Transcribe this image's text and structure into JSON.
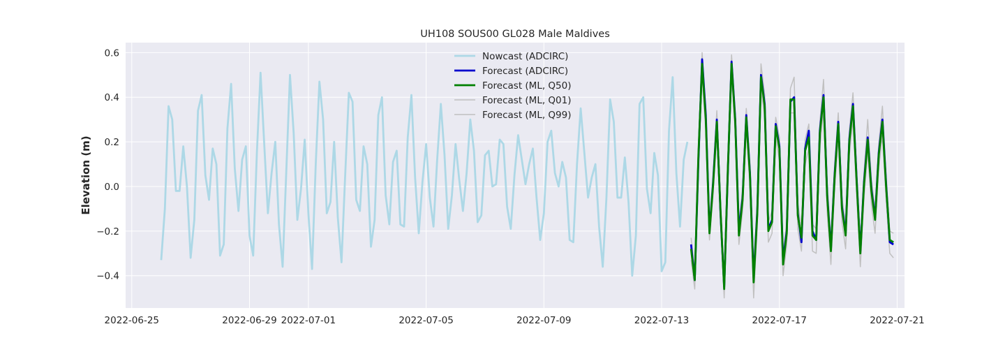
{
  "chart_data": {
    "type": "line",
    "title": "UH108 SOUS00 GL028 Male Maldives",
    "xlabel": "",
    "ylabel": "Elevation (m)",
    "xlim": [
      "2022-06-24T19:00",
      "2022-07-21T06:00"
    ],
    "ylim": [
      -0.545,
      0.645
    ],
    "grid": true,
    "legend_position": "top-center",
    "x_ticks": [
      "2022-06-25",
      "2022-06-29",
      "2022-07-01",
      "2022-07-05",
      "2022-07-09",
      "2022-07-13",
      "2022-07-17",
      "2022-07-21"
    ],
    "y_ticks": [
      "0.6",
      "0.4",
      "0.2",
      "0.0",
      "−0.2",
      "−0.4"
    ],
    "y_tick_values": [
      0.6,
      0.4,
      0.2,
      0.0,
      -0.2,
      -0.4
    ],
    "colors": {
      "plot_background": "#eaeaf2",
      "grid": "#ffffff",
      "nowcast": "#add8e6",
      "forecast_adcirc": "#0000cd",
      "forecast_ml_q50": "#008000",
      "forecast_ml_bounds": "#c0c0c0"
    },
    "series": [
      {
        "name": "Nowcast (ADCIRC)",
        "color": "#add8e6",
        "x": [
          "2022-06-26T00:00",
          "2022-06-26T03:00",
          "2022-06-26T06:00",
          "2022-06-26T09:00",
          "2022-06-26T12:00",
          "2022-06-26T15:00",
          "2022-06-26T18:00",
          "2022-06-26T21:00",
          "2022-06-27T00:00",
          "2022-06-27T03:00",
          "2022-06-27T06:00",
          "2022-06-27T09:00",
          "2022-06-27T12:00",
          "2022-06-27T15:00",
          "2022-06-27T18:00",
          "2022-06-27T21:00",
          "2022-06-28T00:00",
          "2022-06-28T03:00",
          "2022-06-28T06:00",
          "2022-06-28T09:00",
          "2022-06-28T12:00",
          "2022-06-28T15:00",
          "2022-06-28T18:00",
          "2022-06-28T21:00",
          "2022-06-29T00:00",
          "2022-06-29T03:00",
          "2022-06-29T06:00",
          "2022-06-29T09:00",
          "2022-06-29T12:00",
          "2022-06-29T15:00",
          "2022-06-29T18:00",
          "2022-06-29T21:00",
          "2022-06-30T00:00",
          "2022-06-30T03:00",
          "2022-06-30T06:00",
          "2022-06-30T09:00",
          "2022-06-30T12:00",
          "2022-06-30T15:00",
          "2022-06-30T18:00",
          "2022-06-30T21:00",
          "2022-07-01T00:00",
          "2022-07-01T03:00",
          "2022-07-01T06:00",
          "2022-07-01T09:00",
          "2022-07-01T12:00",
          "2022-07-01T15:00",
          "2022-07-01T18:00",
          "2022-07-01T21:00",
          "2022-07-02T00:00",
          "2022-07-02T03:00",
          "2022-07-02T06:00",
          "2022-07-02T09:00",
          "2022-07-02T12:00",
          "2022-07-02T15:00",
          "2022-07-02T18:00",
          "2022-07-02T21:00",
          "2022-07-03T00:00",
          "2022-07-03T03:00",
          "2022-07-03T06:00",
          "2022-07-03T09:00",
          "2022-07-03T12:00",
          "2022-07-03T15:00",
          "2022-07-03T18:00",
          "2022-07-03T21:00",
          "2022-07-04T00:00",
          "2022-07-04T03:00",
          "2022-07-04T06:00",
          "2022-07-04T09:00",
          "2022-07-04T12:00",
          "2022-07-04T15:00",
          "2022-07-04T18:00",
          "2022-07-04T21:00",
          "2022-07-05T00:00",
          "2022-07-05T03:00",
          "2022-07-05T06:00",
          "2022-07-05T09:00",
          "2022-07-05T12:00",
          "2022-07-05T15:00",
          "2022-07-05T18:00",
          "2022-07-05T21:00",
          "2022-07-06T00:00",
          "2022-07-06T03:00",
          "2022-07-06T06:00",
          "2022-07-06T09:00",
          "2022-07-06T12:00",
          "2022-07-06T15:00",
          "2022-07-06T18:00",
          "2022-07-06T21:00",
          "2022-07-07T00:00",
          "2022-07-07T03:00",
          "2022-07-07T06:00",
          "2022-07-07T09:00",
          "2022-07-07T12:00",
          "2022-07-07T15:00",
          "2022-07-07T18:00",
          "2022-07-07T21:00",
          "2022-07-08T00:00",
          "2022-07-08T03:00",
          "2022-07-08T06:00",
          "2022-07-08T09:00",
          "2022-07-08T12:00",
          "2022-07-08T15:00",
          "2022-07-08T18:00",
          "2022-07-08T21:00",
          "2022-07-09T00:00",
          "2022-07-09T03:00",
          "2022-07-09T06:00",
          "2022-07-09T09:00",
          "2022-07-09T12:00",
          "2022-07-09T15:00",
          "2022-07-09T18:00",
          "2022-07-09T21:00",
          "2022-07-10T00:00",
          "2022-07-10T03:00",
          "2022-07-10T06:00",
          "2022-07-10T09:00",
          "2022-07-10T12:00",
          "2022-07-10T15:00",
          "2022-07-10T18:00",
          "2022-07-10T21:00",
          "2022-07-11T00:00",
          "2022-07-11T03:00",
          "2022-07-11T06:00",
          "2022-07-11T09:00",
          "2022-07-11T12:00",
          "2022-07-11T15:00",
          "2022-07-11T18:00",
          "2022-07-11T21:00",
          "2022-07-12T00:00",
          "2022-07-12T03:00",
          "2022-07-12T06:00",
          "2022-07-12T09:00",
          "2022-07-12T12:00",
          "2022-07-12T15:00",
          "2022-07-12T18:00",
          "2022-07-12T21:00",
          "2022-07-13T00:00",
          "2022-07-13T03:00",
          "2022-07-13T06:00",
          "2022-07-13T09:00",
          "2022-07-13T12:00",
          "2022-07-13T15:00",
          "2022-07-13T18:00",
          "2022-07-13T21:00"
        ],
        "values": [
          -0.33,
          -0.1,
          0.36,
          0.3,
          -0.02,
          -0.02,
          0.18,
          0.0,
          -0.32,
          -0.15,
          0.34,
          0.41,
          0.05,
          -0.06,
          0.17,
          0.1,
          -0.31,
          -0.26,
          0.26,
          0.46,
          0.08,
          -0.11,
          0.12,
          0.18,
          -0.22,
          -0.31,
          0.15,
          0.51,
          0.19,
          -0.12,
          0.06,
          0.2,
          -0.17,
          -0.36,
          0.07,
          0.5,
          0.24,
          -0.15,
          -0.01,
          0.21,
          -0.12,
          -0.37,
          0.1,
          0.47,
          0.3,
          -0.12,
          -0.07,
          0.2,
          -0.14,
          -0.34,
          0.05,
          0.42,
          0.38,
          -0.06,
          -0.11,
          0.18,
          0.1,
          -0.27,
          -0.15,
          0.32,
          0.4,
          -0.04,
          -0.17,
          0.11,
          0.16,
          -0.17,
          -0.18,
          0.22,
          0.41,
          0.04,
          -0.21,
          0.02,
          0.19,
          -0.05,
          -0.18,
          0.12,
          0.37,
          0.14,
          -0.19,
          -0.04,
          0.19,
          0.03,
          -0.11,
          0.06,
          0.3,
          0.16,
          -0.16,
          -0.13,
          0.14,
          0.16,
          0.0,
          0.01,
          0.21,
          0.19,
          -0.09,
          -0.19,
          0.05,
          0.23,
          0.12,
          0.01,
          0.1,
          0.17,
          -0.05,
          -0.24,
          -0.12,
          0.2,
          0.25,
          0.06,
          0.0,
          0.11,
          0.04,
          -0.24,
          -0.25,
          0.1,
          0.35,
          0.15,
          -0.05,
          0.04,
          0.1,
          -0.18,
          -0.36,
          -0.05,
          0.39,
          0.29,
          -0.05,
          -0.05,
          0.13,
          -0.07,
          -0.4,
          -0.22,
          0.37,
          0.4,
          -0.01,
          -0.12,
          0.15,
          0.05,
          -0.38,
          -0.34,
          0.25,
          0.49,
          0.06,
          -0.18,
          0.12,
          0.2
        ]
      },
      {
        "name": "Forecast (ADCIRC)",
        "color": "#0000cd",
        "x": [
          "2022-07-14T00:00",
          "2022-07-14T03:00",
          "2022-07-14T06:00",
          "2022-07-14T09:00",
          "2022-07-14T12:00",
          "2022-07-14T15:00",
          "2022-07-14T18:00",
          "2022-07-14T21:00",
          "2022-07-15T00:00",
          "2022-07-15T03:00",
          "2022-07-15T06:00",
          "2022-07-15T09:00",
          "2022-07-15T12:00",
          "2022-07-15T15:00",
          "2022-07-15T18:00",
          "2022-07-15T21:00",
          "2022-07-16T00:00",
          "2022-07-16T03:00",
          "2022-07-16T06:00",
          "2022-07-16T09:00",
          "2022-07-16T12:00",
          "2022-07-16T15:00",
          "2022-07-16T18:00",
          "2022-07-16T21:00",
          "2022-07-17T00:00",
          "2022-07-17T03:00",
          "2022-07-17T06:00",
          "2022-07-17T09:00",
          "2022-07-17T12:00",
          "2022-07-17T15:00",
          "2022-07-17T18:00",
          "2022-07-17T21:00",
          "2022-07-18T00:00",
          "2022-07-18T03:00",
          "2022-07-18T06:00",
          "2022-07-18T09:00",
          "2022-07-18T12:00",
          "2022-07-18T15:00",
          "2022-07-18T18:00",
          "2022-07-18T21:00",
          "2022-07-19T00:00",
          "2022-07-19T03:00",
          "2022-07-19T06:00",
          "2022-07-19T09:00",
          "2022-07-19T12:00",
          "2022-07-19T15:00",
          "2022-07-19T18:00",
          "2022-07-19T21:00",
          "2022-07-20T00:00",
          "2022-07-20T03:00",
          "2022-07-20T06:00",
          "2022-07-20T09:00",
          "2022-07-20T12:00",
          "2022-07-20T15:00",
          "2022-07-20T18:00",
          "2022-07-20T21:00"
        ],
        "values": [
          -0.26,
          -0.42,
          0.12,
          0.57,
          0.32,
          -0.2,
          0.02,
          0.3,
          -0.12,
          -0.45,
          0.07,
          0.56,
          0.3,
          -0.2,
          -0.05,
          0.32,
          0.06,
          -0.41,
          -0.11,
          0.5,
          0.37,
          -0.19,
          -0.15,
          0.28,
          0.18,
          -0.33,
          -0.2,
          0.38,
          0.4,
          -0.12,
          -0.25,
          0.17,
          0.25,
          -0.2,
          -0.24,
          0.25,
          0.41,
          -0.04,
          -0.28,
          0.05,
          0.29,
          -0.09,
          -0.21,
          0.21,
          0.37,
          0.03,
          -0.29,
          0.02,
          0.22,
          -0.01,
          -0.14,
          0.15,
          0.3,
          0.01,
          -0.25,
          -0.26
        ]
      },
      {
        "name": "Forecast (ML, Q50)",
        "color": "#008000",
        "x": [
          "2022-07-14T00:00",
          "2022-07-14T03:00",
          "2022-07-14T06:00",
          "2022-07-14T09:00",
          "2022-07-14T12:00",
          "2022-07-14T15:00",
          "2022-07-14T18:00",
          "2022-07-14T21:00",
          "2022-07-15T00:00",
          "2022-07-15T03:00",
          "2022-07-15T06:00",
          "2022-07-15T09:00",
          "2022-07-15T12:00",
          "2022-07-15T15:00",
          "2022-07-15T18:00",
          "2022-07-15T21:00",
          "2022-07-16T00:00",
          "2022-07-16T03:00",
          "2022-07-16T06:00",
          "2022-07-16T09:00",
          "2022-07-16T12:00",
          "2022-07-16T15:00",
          "2022-07-16T18:00",
          "2022-07-16T21:00",
          "2022-07-17T00:00",
          "2022-07-17T03:00",
          "2022-07-17T06:00",
          "2022-07-17T09:00",
          "2022-07-17T12:00",
          "2022-07-17T15:00",
          "2022-07-17T18:00",
          "2022-07-17T21:00",
          "2022-07-18T00:00",
          "2022-07-18T03:00",
          "2022-07-18T06:00",
          "2022-07-18T09:00",
          "2022-07-18T12:00",
          "2022-07-18T15:00",
          "2022-07-18T18:00",
          "2022-07-18T21:00",
          "2022-07-19T00:00",
          "2022-07-19T03:00",
          "2022-07-19T06:00",
          "2022-07-19T09:00",
          "2022-07-19T12:00",
          "2022-07-19T15:00",
          "2022-07-19T18:00",
          "2022-07-19T21:00",
          "2022-07-20T00:00",
          "2022-07-20T03:00",
          "2022-07-20T06:00",
          "2022-07-20T09:00",
          "2022-07-20T12:00",
          "2022-07-20T15:00",
          "2022-07-20T18:00",
          "2022-07-20T21:00"
        ],
        "values": [
          -0.28,
          -0.42,
          0.14,
          0.55,
          0.3,
          -0.21,
          0.01,
          0.29,
          -0.11,
          -0.46,
          0.08,
          0.55,
          0.29,
          -0.22,
          -0.06,
          0.31,
          0.05,
          -0.43,
          -0.12,
          0.49,
          0.36,
          -0.2,
          -0.16,
          0.27,
          0.17,
          -0.35,
          -0.21,
          0.39,
          0.39,
          -0.13,
          -0.23,
          0.16,
          0.22,
          -0.22,
          -0.24,
          0.24,
          0.4,
          -0.05,
          -0.29,
          0.04,
          0.28,
          -0.1,
          -0.22,
          0.2,
          0.36,
          0.02,
          -0.3,
          0.01,
          0.21,
          -0.02,
          -0.15,
          0.14,
          0.29,
          0.0,
          -0.24,
          -0.25
        ]
      },
      {
        "name": "Forecast (ML, Q01)",
        "color": "#c0c0c0",
        "x": [
          "2022-07-14T00:00",
          "2022-07-14T03:00",
          "2022-07-14T06:00",
          "2022-07-14T09:00",
          "2022-07-14T12:00",
          "2022-07-14T15:00",
          "2022-07-14T18:00",
          "2022-07-14T21:00",
          "2022-07-15T00:00",
          "2022-07-15T03:00",
          "2022-07-15T06:00",
          "2022-07-15T09:00",
          "2022-07-15T12:00",
          "2022-07-15T15:00",
          "2022-07-15T18:00",
          "2022-07-15T21:00",
          "2022-07-16T00:00",
          "2022-07-16T03:00",
          "2022-07-16T06:00",
          "2022-07-16T09:00",
          "2022-07-16T12:00",
          "2022-07-16T15:00",
          "2022-07-16T18:00",
          "2022-07-16T21:00",
          "2022-07-17T00:00",
          "2022-07-17T03:00",
          "2022-07-17T06:00",
          "2022-07-17T09:00",
          "2022-07-17T12:00",
          "2022-07-17T15:00",
          "2022-07-17T18:00",
          "2022-07-17T21:00",
          "2022-07-18T00:00",
          "2022-07-18T03:00",
          "2022-07-18T06:00",
          "2022-07-18T09:00",
          "2022-07-18T12:00",
          "2022-07-18T15:00",
          "2022-07-18T18:00",
          "2022-07-18T21:00",
          "2022-07-19T00:00",
          "2022-07-19T03:00",
          "2022-07-19T06:00",
          "2022-07-19T09:00",
          "2022-07-19T12:00",
          "2022-07-19T15:00",
          "2022-07-19T18:00",
          "2022-07-19T21:00",
          "2022-07-20T00:00",
          "2022-07-20T03:00",
          "2022-07-20T06:00",
          "2022-07-20T09:00",
          "2022-07-20T12:00",
          "2022-07-20T15:00",
          "2022-07-20T18:00",
          "2022-07-20T21:00"
        ],
        "values": [
          -0.33,
          -0.46,
          0.08,
          0.5,
          0.25,
          -0.24,
          -0.03,
          0.24,
          -0.16,
          -0.5,
          0.03,
          0.5,
          0.24,
          -0.26,
          -0.11,
          0.26,
          0.0,
          -0.5,
          -0.17,
          0.44,
          0.31,
          -0.25,
          -0.21,
          0.22,
          0.12,
          -0.4,
          -0.26,
          0.33,
          0.33,
          -0.19,
          -0.29,
          0.1,
          0.17,
          -0.29,
          -0.3,
          0.17,
          0.34,
          -0.12,
          -0.35,
          -0.02,
          0.22,
          -0.16,
          -0.28,
          0.14,
          0.3,
          -0.04,
          -0.36,
          -0.05,
          0.15,
          -0.08,
          -0.21,
          0.08,
          0.23,
          -0.06,
          -0.3,
          -0.32
        ]
      },
      {
        "name": "Forecast (ML, Q99)",
        "color": "#c0c0c0",
        "x": [
          "2022-07-14T00:00",
          "2022-07-14T03:00",
          "2022-07-14T06:00",
          "2022-07-14T09:00",
          "2022-07-14T12:00",
          "2022-07-14T15:00",
          "2022-07-14T18:00",
          "2022-07-14T21:00",
          "2022-07-15T00:00",
          "2022-07-15T03:00",
          "2022-07-15T06:00",
          "2022-07-15T09:00",
          "2022-07-15T12:00",
          "2022-07-15T15:00",
          "2022-07-15T18:00",
          "2022-07-15T21:00",
          "2022-07-16T00:00",
          "2022-07-16T03:00",
          "2022-07-16T06:00",
          "2022-07-16T09:00",
          "2022-07-16T12:00",
          "2022-07-16T15:00",
          "2022-07-16T18:00",
          "2022-07-16T21:00",
          "2022-07-17T00:00",
          "2022-07-17T03:00",
          "2022-07-17T06:00",
          "2022-07-17T09:00",
          "2022-07-17T12:00",
          "2022-07-17T15:00",
          "2022-07-17T18:00",
          "2022-07-17T21:00",
          "2022-07-18T00:00",
          "2022-07-18T03:00",
          "2022-07-18T06:00",
          "2022-07-18T09:00",
          "2022-07-18T12:00",
          "2022-07-18T15:00",
          "2022-07-18T18:00",
          "2022-07-18T21:00",
          "2022-07-19T00:00",
          "2022-07-19T03:00",
          "2022-07-19T06:00",
          "2022-07-19T09:00",
          "2022-07-19T12:00",
          "2022-07-19T15:00",
          "2022-07-19T18:00",
          "2022-07-19T21:00",
          "2022-07-20T00:00",
          "2022-07-20T03:00",
          "2022-07-20T06:00",
          "2022-07-20T09:00",
          "2022-07-20T12:00",
          "2022-07-20T15:00",
          "2022-07-20T18:00",
          "2022-07-20T21:00"
        ],
        "values": [
          -0.23,
          -0.38,
          0.19,
          0.6,
          0.35,
          -0.17,
          0.06,
          0.34,
          -0.06,
          -0.42,
          0.13,
          0.59,
          0.34,
          -0.17,
          -0.01,
          0.35,
          0.1,
          -0.36,
          -0.07,
          0.55,
          0.41,
          -0.16,
          -0.11,
          0.31,
          0.22,
          -0.3,
          -0.16,
          0.44,
          0.49,
          -0.08,
          -0.18,
          0.21,
          0.28,
          -0.17,
          -0.19,
          0.29,
          0.48,
          0.01,
          -0.24,
          0.09,
          0.33,
          -0.05,
          -0.17,
          0.25,
          0.42,
          0.07,
          -0.25,
          0.06,
          0.3,
          0.03,
          -0.1,
          0.19,
          0.36,
          0.05,
          -0.2,
          -0.21
        ]
      }
    ]
  }
}
